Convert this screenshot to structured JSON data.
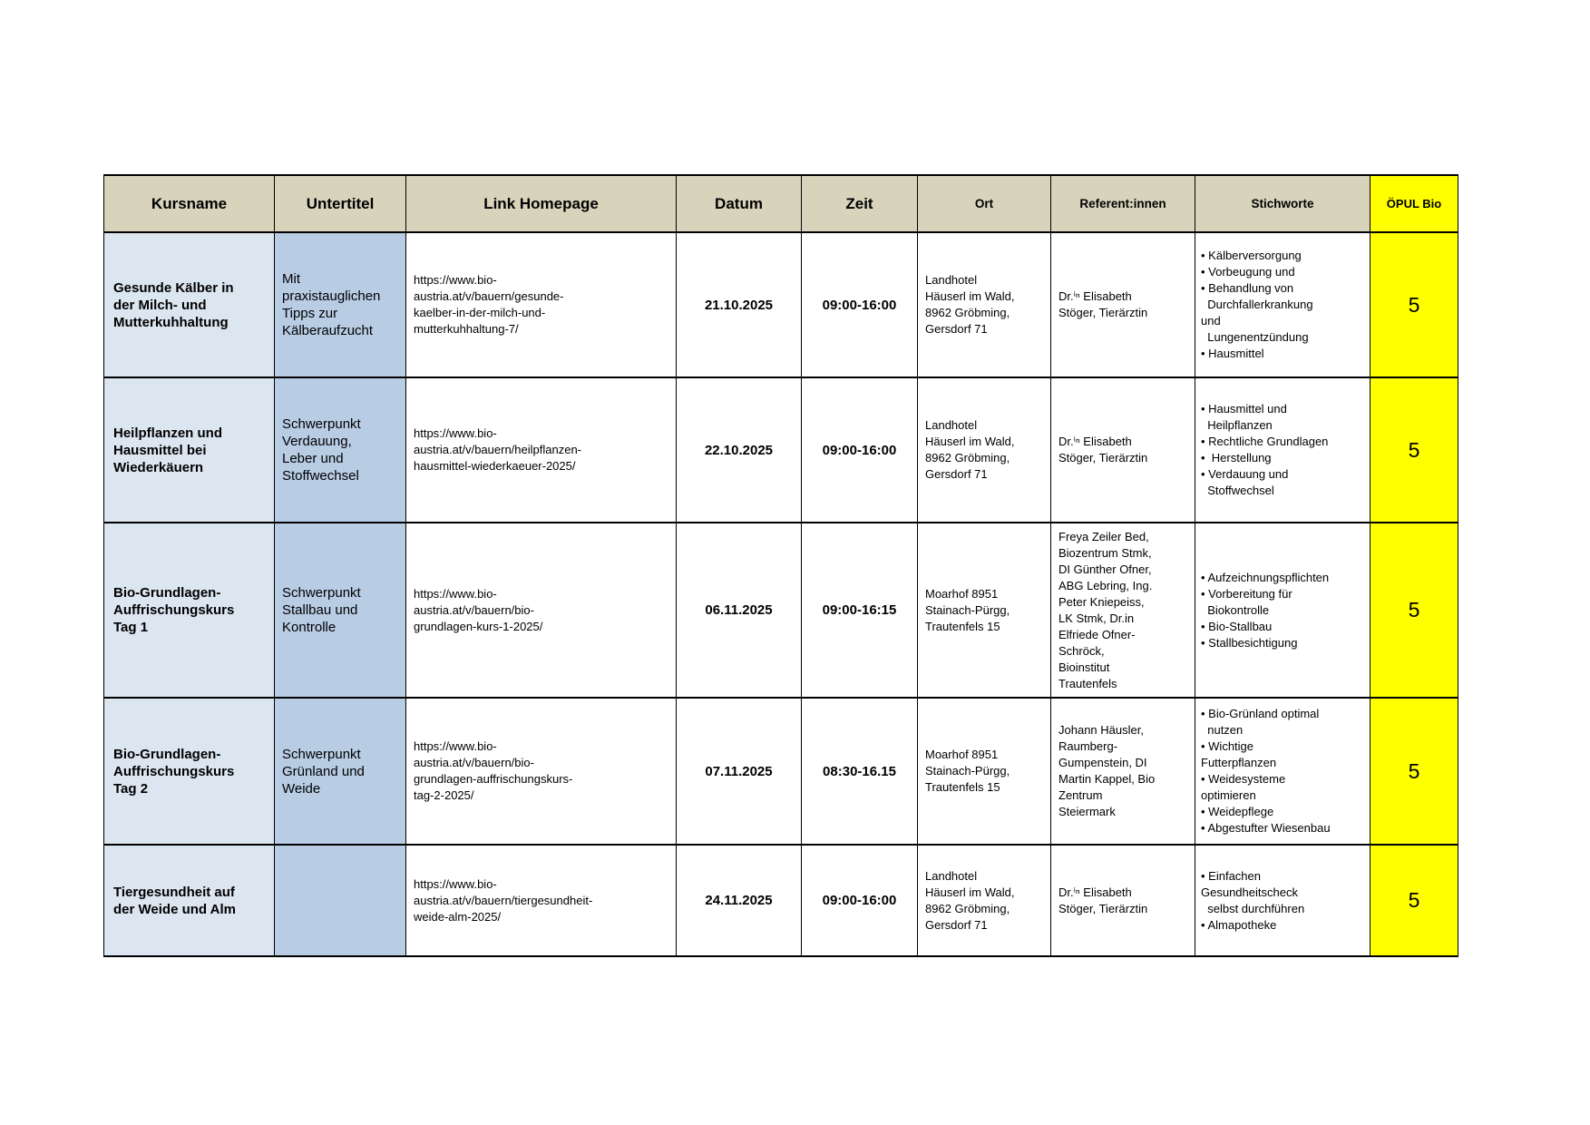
{
  "page": {
    "background": "#ffffff"
  },
  "table": {
    "colors": {
      "header_bg": "#d8d4bc",
      "kurs_bg": "#dce6f1",
      "unt_bg": "#b8cce4",
      "oepul_bg": "#ffff00",
      "border": "#000000"
    },
    "headers": [
      "Kursname",
      "Untertitel",
      "Link Homepage",
      "Datum",
      "Zeit",
      "Ort",
      "Referent:innen",
      "Stichworte",
      "ÖPUL Bio"
    ],
    "rows": [
      {
        "kursname": "Gesunde Kälber in\nder Milch- und\nMutterkuhhaltung",
        "untertitel": "Mit\npraxistauglichen\nTipps zur\nKälberaufzucht",
        "link": "https://www.bio-\naustria.at/v/bauern/gesunde-\nkaelber-in-der-milch-und-\nmutterkuhhaltung-7/",
        "datum": "21.10.2025",
        "zeit": "09:00-16:00",
        "ort": "Landhotel\nHäuserl im Wald,\n8962 Gröbming,\nGersdorf 71",
        "referent": "Dr.ⁱⁿ Elisabeth\nStöger, Tierärztin",
        "stichworte": "• Kälberversorgung\n• Vorbeugung und\n• Behandlung von\n  Durchfallerkrankung\nund\n  Lungenentzündung\n• Hausmittel",
        "oepul_bio": "5"
      },
      {
        "kursname": "Heilpflanzen und\nHausmittel bei\nWiederkäuern",
        "untertitel": "Schwerpunkt\nVerdauung,\nLeber und\nStoffwechsel",
        "link": "https://www.bio-\naustria.at/v/bauern/heilpflanzen-\nhausmittel-wiederkaeuer-2025/",
        "datum": "22.10.2025",
        "zeit": "09:00-16:00",
        "ort": "Landhotel\nHäuserl im Wald,\n8962 Gröbming,\nGersdorf 71",
        "referent": "Dr.ⁱⁿ Elisabeth\nStöger, Tierärztin",
        "stichworte": "• Hausmittel und\n  Heilpflanzen\n• Rechtliche Grundlagen\n•  Herstellung\n• Verdauung und\n  Stoffwechsel",
        "oepul_bio": "5"
      },
      {
        "kursname": "Bio-Grundlagen-\nAuffrischungskurs\nTag 1",
        "untertitel": "Schwerpunkt\nStallbau und\nKontrolle",
        "link": "https://www.bio-\naustria.at/v/bauern/bio-\ngrundlagen-kurs-1-2025/",
        "datum": "06.11.2025",
        "zeit": "09:00-16:15",
        "ort": "Moarhof 8951\nStainach-Pürgg,\nTrautenfels 15",
        "referent": "Freya Zeiler Bed,\nBiozentrum Stmk,\nDI Günther Ofner,\nABG Lebring, Ing.\nPeter Kniepeiss,\nLK Stmk, Dr.in\nElfriede Ofner-\nSchröck,\nBioinstitut\nTrautenfels",
        "stichworte": "• Aufzeichnungspflichten\n• Vorbereitung für\n  Biokontrolle\n• Bio-Stallbau\n• Stallbesichtigung",
        "oepul_bio": "5"
      },
      {
        "kursname": "Bio-Grundlagen-\nAuffrischungskurs\nTag 2",
        "untertitel": "Schwerpunkt\nGrünland und\nWeide",
        "link": "https://www.bio-\naustria.at/v/bauern/bio-\ngrundlagen-auffrischungskurs-\ntag-2-2025/",
        "datum": "07.11.2025",
        "zeit": "08:30-16.15",
        "ort": "Moarhof 8951\nStainach-Pürgg,\nTrautenfels 15",
        "referent": "Johann Häusler,\nRaumberg-\nGumpenstein, DI\nMartin Kappel, Bio\nZentrum\nSteiermark",
        "stichworte": "• Bio-Grünland optimal\n  nutzen\n• Wichtige\nFutterpflanzen\n• Weidesysteme\noptimieren\n• Weidepflege\n• Abgestufter Wiesenbau",
        "oepul_bio": "5"
      },
      {
        "kursname": "Tiergesundheit auf\nder Weide und Alm",
        "untertitel": "",
        "link": "https://www.bio-\naustria.at/v/bauern/tiergesundheit-\nweide-alm-2025/",
        "datum": "24.11.2025",
        "zeit": "09:00-16:00",
        "ort": "Landhotel\nHäuserl im Wald,\n8962 Gröbming,\nGersdorf 71",
        "referent": "Dr.ⁱⁿ Elisabeth\nStöger, Tierärztin",
        "stichworte": "• Einfachen\nGesundheitscheck\n  selbst durchführen\n• Almapotheke",
        "oepul_bio": "5"
      }
    ]
  }
}
